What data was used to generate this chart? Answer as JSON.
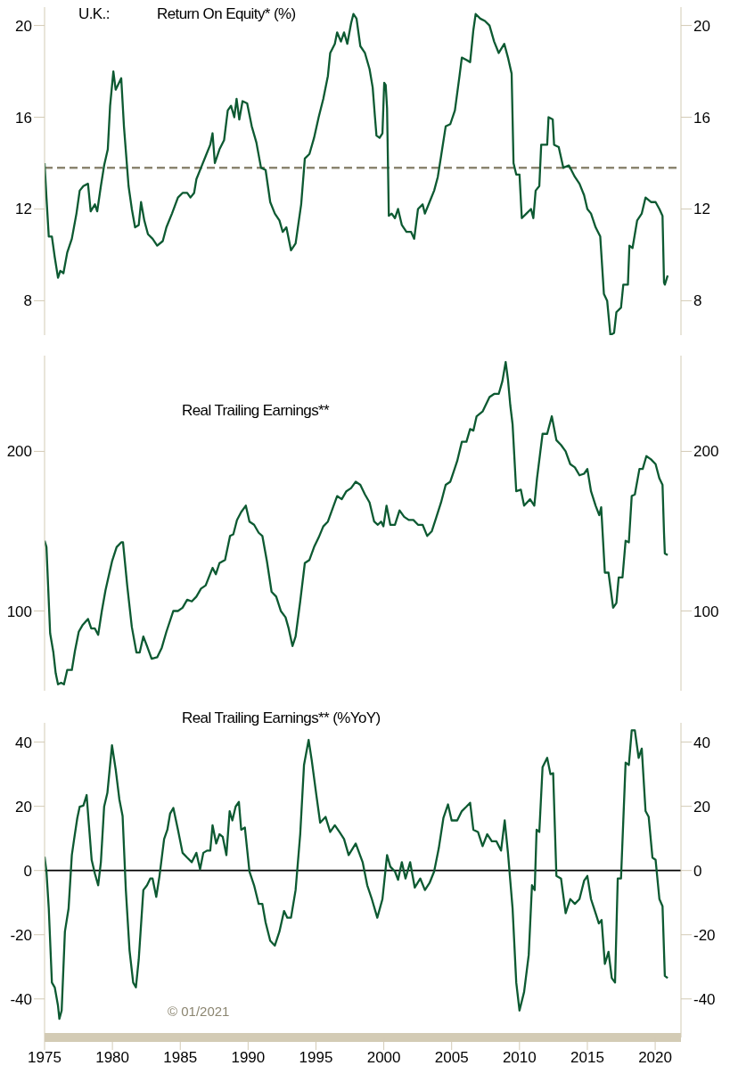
{
  "chart_data": [
    {
      "type": "line",
      "title": "U.K.:",
      "subtitle": "Return On Equity* (%)",
      "x": [
        1975,
        1975.14,
        1975.31,
        1975.54,
        1975.75,
        1975.99,
        1976.16,
        1976.39,
        1976.67,
        1977.01,
        1977.35,
        1977.59,
        1977.86,
        1978.2,
        1978.4,
        1978.71,
        1978.88,
        1979.15,
        1979.39,
        1979.66,
        1979.83,
        1980.07,
        1980.24,
        1980.65,
        1980.85,
        1981.19,
        1981.43,
        1981.67,
        1981.94,
        1982.11,
        1982.35,
        1982.62,
        1982.96,
        1983.3,
        1983.71,
        1983.98,
        1984.39,
        1984.83,
        1985.17,
        1985.51,
        1985.75,
        1986.02,
        1986.19,
        1986.53,
        1986.87,
        1987.21,
        1987.38,
        1987.55,
        1987.89,
        1988.23,
        1988.5,
        1988.74,
        1988.98,
        1989.15,
        1989.35,
        1989.59,
        1989.93,
        1990.27,
        1990.61,
        1990.95,
        1991.29,
        1991.63,
        1991.97,
        1992.31,
        1992.55,
        1992.82,
        1993.16,
        1993.5,
        1993.91,
        1994.18,
        1994.52,
        1994.86,
        1995.2,
        1995.54,
        1995.88,
        1996.05,
        1996.39,
        1996.56,
        1996.84,
        1997.07,
        1997.31,
        1997.59,
        1997.76,
        1997.99,
        1998.27,
        1998.61,
        1998.95,
        1999.18,
        1999.35,
        1999.46,
        1999.69,
        1999.9,
        2000.03,
        2000.14,
        2000.24,
        2000.37,
        2000.58,
        2000.82,
        2001.05,
        2001.33,
        2001.67,
        2002.01,
        2002.24,
        2002.52,
        2002.86,
        2003.03,
        2003.37,
        2003.71,
        2003.98,
        2004.22,
        2004.56,
        2004.9,
        2005.24,
        2005.58,
        2005.75,
        2006.09,
        2006.36,
        2006.6,
        2006.77,
        2007.11,
        2007.45,
        2007.79,
        2008.13,
        2008.47,
        2008.88,
        2009.15,
        2009.42,
        2009.56,
        2009.76,
        2010.0,
        2010.17,
        2010.51,
        2010.85,
        2011.02,
        2011.19,
        2011.46,
        2011.6,
        2012.04,
        2012.14,
        2012.45,
        2012.55,
        2012.89,
        2013.23,
        2013.64,
        2014.08,
        2014.42,
        2014.76,
        2015.0,
        2015.27,
        2015.61,
        2015.95,
        2016.22,
        2016.46,
        2016.7,
        2016.97,
        2017.14,
        2017.48,
        2017.65,
        2017.99,
        2018.1,
        2018.33,
        2018.67,
        2019.01,
        2019.29,
        2019.69,
        2020.03,
        2020.31,
        2020.54,
        2020.65,
        2020.71,
        2020.92
      ],
      "series": [
        {
          "color": "#0d5a32",
          "values": [
            14.0,
            12.5,
            10.8,
            10.8,
            9.9,
            9.0,
            9.3,
            9.2,
            10.1,
            10.7,
            11.8,
            12.8,
            13.0,
            13.1,
            11.9,
            12.2,
            11.9,
            13.0,
            13.9,
            14.6,
            16.5,
            18.0,
            17.2,
            17.7,
            15.6,
            13.0,
            12.0,
            11.2,
            11.3,
            12.3,
            11.5,
            10.9,
            10.7,
            10.4,
            10.6,
            11.2,
            11.8,
            12.5,
            12.7,
            12.7,
            12.5,
            12.7,
            13.3,
            13.8,
            14.3,
            14.8,
            15.3,
            14.0,
            14.6,
            15.0,
            16.3,
            16.5,
            16.0,
            16.8,
            15.9,
            16.7,
            16.6,
            15.6,
            14.9,
            13.8,
            13.7,
            12.3,
            11.8,
            11.5,
            11.0,
            11.2,
            10.2,
            10.5,
            12.2,
            14.2,
            14.4,
            15.1,
            16.0,
            16.8,
            17.8,
            18.8,
            19.2,
            19.7,
            19.3,
            19.7,
            19.2,
            20.1,
            20.5,
            20.3,
            19.1,
            18.8,
            18.1,
            17.3,
            16.0,
            15.2,
            15.1,
            15.3,
            17.5,
            17.4,
            16.4,
            11.7,
            11.8,
            11.6,
            12.0,
            11.3,
            11.0,
            11.0,
            10.7,
            12.0,
            12.2,
            11.8,
            12.3,
            12.8,
            13.4,
            14.3,
            15.6,
            15.7,
            16.3,
            17.8,
            18.6,
            18.5,
            18.4,
            19.8,
            20.5,
            20.3,
            20.2,
            20.0,
            19.3,
            18.8,
            19.2,
            18.6,
            17.9,
            14.0,
            13.5,
            13.5,
            11.6,
            11.8,
            12.0,
            11.6,
            12.8,
            13.0,
            14.8,
            14.8,
            16.0,
            15.9,
            14.8,
            14.7,
            13.8,
            13.9,
            13.4,
            13.1,
            12.6,
            12.0,
            11.8,
            11.2,
            10.8,
            8.3,
            8.0,
            6.5,
            6.6,
            7.5,
            7.7,
            8.7,
            8.7,
            10.4,
            10.3,
            11.5,
            11.8,
            12.5,
            12.3,
            12.3,
            12.0,
            11.7,
            8.8,
            8.7,
            9.1
          ]
        }
      ],
      "xlim": [
        1975,
        2021.9
      ],
      "ylim": [
        6.5,
        20.8
      ],
      "yticks": [
        8,
        12,
        16,
        20
      ],
      "y2lim": [
        6.5,
        20.8
      ],
      "y2ticks": [
        8,
        12,
        16,
        20
      ],
      "tick_labels": "y",
      "ref_lines": [
        {
          "axis": "y",
          "value": 13.8,
          "color": "#8b8570",
          "line_style": "dashed"
        }
      ]
    },
    {
      "type": "line",
      "title": "Real Trailing Earnings**",
      "x": [
        1975,
        1975.14,
        1975.41,
        1975.65,
        1975.82,
        1975.99,
        1976.22,
        1976.43,
        1976.67,
        1977.01,
        1977.24,
        1977.52,
        1977.79,
        1978.2,
        1978.44,
        1978.71,
        1978.95,
        1979.22,
        1979.49,
        1979.73,
        1979.97,
        1980.31,
        1980.65,
        1980.78,
        1981.09,
        1981.43,
        1981.77,
        1982.01,
        1982.28,
        1982.55,
        1982.89,
        1983.3,
        1983.64,
        1983.98,
        1984.49,
        1984.83,
        1985.17,
        1985.51,
        1985.85,
        1986.19,
        1986.53,
        1986.87,
        1987.38,
        1987.62,
        1987.89,
        1988.3,
        1988.67,
        1988.91,
        1989.18,
        1989.49,
        1989.83,
        1990.1,
        1990.44,
        1990.78,
        1991.05,
        1991.39,
        1991.73,
        1992.07,
        1992.41,
        1992.76,
        1992.99,
        1993.27,
        1993.5,
        1993.84,
        1994.18,
        1994.52,
        1994.86,
        1995.2,
        1995.54,
        1995.88,
        1996.22,
        1996.56,
        1996.9,
        1997.24,
        1997.59,
        1997.93,
        1998.27,
        1998.61,
        1998.95,
        1999.29,
        1999.56,
        1999.8,
        1999.97,
        2000.2,
        2000.48,
        2000.82,
        2001.16,
        2001.5,
        2001.84,
        2002.18,
        2002.52,
        2002.86,
        2003.2,
        2003.54,
        2003.88,
        2004.22,
        2004.56,
        2004.9,
        2005.41,
        2005.75,
        2006.09,
        2006.36,
        2006.6,
        2006.84,
        2007.28,
        2007.79,
        2008.13,
        2008.47,
        2008.74,
        2008.98,
        2009.15,
        2009.32,
        2009.49,
        2009.76,
        2010.1,
        2010.34,
        2010.78,
        2011.09,
        2011.29,
        2011.7,
        2012.04,
        2012.38,
        2012.72,
        2013.06,
        2013.4,
        2013.74,
        2014.08,
        2014.42,
        2014.76,
        2015.0,
        2015.27,
        2015.61,
        2015.88,
        2016.02,
        2016.29,
        2016.56,
        2016.9,
        2017.14,
        2017.31,
        2017.59,
        2017.82,
        2018.06,
        2018.27,
        2018.5,
        2018.84,
        2019.08,
        2019.35,
        2019.69,
        2020.03,
        2020.31,
        2020.54,
        2020.65,
        2020.71,
        2020.92
      ],
      "series": [
        {
          "color": "#0d5a32",
          "values": [
            144,
            140,
            86,
            74,
            61,
            54,
            55,
            54,
            63,
            63,
            75,
            87,
            91,
            95,
            89,
            89,
            85,
            100,
            113,
            122,
            131,
            140,
            143,
            143,
            116,
            90,
            74,
            74,
            84,
            78,
            70,
            71,
            77,
            87,
            100,
            100,
            102,
            107,
            106,
            109,
            114,
            116,
            127,
            123,
            130,
            132,
            147,
            148,
            157,
            162,
            166,
            156,
            154,
            149,
            147,
            131,
            112,
            109,
            100,
            96,
            89,
            78,
            84,
            106,
            130,
            132,
            140,
            146,
            153,
            156,
            164,
            172,
            170,
            175,
            177,
            181,
            179,
            173,
            168,
            156,
            154,
            156,
            153,
            166,
            154,
            154,
            163,
            159,
            157,
            157,
            154,
            154,
            147,
            150,
            159,
            168,
            179,
            181,
            194,
            206,
            206,
            214,
            213,
            222,
            225,
            234,
            236,
            236,
            244,
            256,
            245,
            229,
            217,
            175,
            176,
            166,
            170,
            166,
            183,
            211,
            211,
            222,
            207,
            204,
            200,
            192,
            190,
            185,
            186,
            189,
            175,
            166,
            160,
            165,
            124,
            124,
            102,
            105,
            121,
            121,
            144,
            143,
            172,
            173,
            189,
            189,
            197,
            195,
            192,
            183,
            179,
            149,
            136,
            135
          ]
        }
      ],
      "xlim": [
        1975,
        2021.9
      ],
      "ylim": [
        50,
        260
      ],
      "yticks": [
        100,
        200
      ],
      "y2lim": [
        50,
        260
      ],
      "y2ticks": [
        100,
        200
      ],
      "tick_labels": "y"
    },
    {
      "type": "line",
      "title": "Real Trailing Earnings** (%YoY)",
      "annotations": [
        "© 01/2021"
      ],
      "x": [
        1975,
        1975.14,
        1975.31,
        1975.54,
        1975.75,
        1975.99,
        1976.09,
        1976.26,
        1976.5,
        1976.77,
        1977.01,
        1977.18,
        1977.41,
        1977.59,
        1977.86,
        1978.1,
        1978.27,
        1978.47,
        1978.71,
        1978.95,
        1979.15,
        1979.39,
        1979.63,
        1979.83,
        1979.97,
        1980.24,
        1980.51,
        1980.75,
        1980.99,
        1981.26,
        1981.53,
        1981.73,
        1981.94,
        1982.28,
        1982.55,
        1982.79,
        1982.96,
        1983.23,
        1983.47,
        1983.81,
        1984.05,
        1984.25,
        1984.49,
        1984.83,
        1985.17,
        1985.51,
        1985.85,
        1986.19,
        1986.46,
        1986.7,
        1986.97,
        1987.21,
        1987.38,
        1987.65,
        1987.89,
        1988.13,
        1988.4,
        1988.64,
        1988.84,
        1989.08,
        1989.32,
        1989.49,
        1989.76,
        1990.1,
        1990.44,
        1990.78,
        1991.05,
        1991.29,
        1991.63,
        1991.97,
        1992.31,
        1992.65,
        1992.89,
        1993.16,
        1993.5,
        1993.84,
        1994.12,
        1994.46,
        1994.69,
        1995.03,
        1995.31,
        1995.71,
        1996.05,
        1996.39,
        1996.73,
        1997.07,
        1997.41,
        1997.93,
        1998.44,
        1998.78,
        1999.12,
        1999.52,
        1999.9,
        2000.24,
        2000.48,
        2000.82,
        2001.05,
        2001.33,
        2001.6,
        2001.94,
        2002.28,
        2002.69,
        2003.03,
        2003.37,
        2003.71,
        2004.05,
        2004.39,
        2004.73,
        2005.0,
        2005.41,
        2005.75,
        2006.09,
        2006.36,
        2006.6,
        2006.94,
        2007.28,
        2007.62,
        2007.96,
        2008.3,
        2008.64,
        2008.91,
        2009.15,
        2009.49,
        2009.76,
        2010.0,
        2010.34,
        2010.68,
        2010.92,
        2011.12,
        2011.26,
        2011.46,
        2011.7,
        2012.04,
        2012.28,
        2012.48,
        2012.72,
        2013.06,
        2013.4,
        2013.74,
        2014.08,
        2014.42,
        2014.76,
        2015.0,
        2015.27,
        2015.61,
        2015.85,
        2016.05,
        2016.29,
        2016.56,
        2016.8,
        2017.04,
        2017.24,
        2017.48,
        2017.82,
        2018.06,
        2018.27,
        2018.5,
        2018.78,
        2019.01,
        2019.29,
        2019.52,
        2019.8,
        2020.03,
        2020.31,
        2020.54,
        2020.71,
        2020.92
      ],
      "series": [
        {
          "color": "#0d5a32",
          "values": [
            4.3,
            -0.3,
            -11.8,
            -34.9,
            -36.4,
            -42.1,
            -46.2,
            -43.6,
            -19,
            -11.8,
            4.8,
            9.8,
            16.3,
            19.9,
            20.2,
            23.5,
            14.1,
            3.3,
            -1,
            -4.6,
            2.6,
            19.9,
            24.2,
            32.9,
            39,
            31.5,
            22.2,
            17,
            -6.1,
            -24.8,
            -34.9,
            -36.4,
            -27.7,
            -6.1,
            -4.6,
            -2.5,
            -2.5,
            -8.2,
            -1.7,
            9.8,
            12.7,
            17.7,
            19.5,
            12.7,
            5.5,
            4,
            2.6,
            5.5,
            0.4,
            5.5,
            6.2,
            6.2,
            14.1,
            8.4,
            11.3,
            10.5,
            4.8,
            18.5,
            15.6,
            19.9,
            21.4,
            12.7,
            13.4,
            -0.3,
            -4.6,
            -10.4,
            -10.4,
            -16.2,
            -21.9,
            -23.4,
            -19,
            -12.6,
            -14.7,
            -14.7,
            -6.1,
            11.3,
            32.9,
            40.7,
            34.3,
            23.5,
            14.9,
            16.7,
            12,
            14.1,
            12,
            9.8,
            4.8,
            8.4,
            2.6,
            -4.6,
            -8.9,
            -14.7,
            -8.9,
            4.8,
            1.2,
            -0.3,
            -2.9,
            2.6,
            -2.5,
            2.6,
            -5.3,
            -2.5,
            -6.1,
            -3.9,
            -0.3,
            6.9,
            16.3,
            20.6,
            15.6,
            15.6,
            18.5,
            19.9,
            21.1,
            12.7,
            12,
            7.6,
            11.3,
            9.1,
            9.1,
            6.2,
            15.6,
            5.5,
            -11.8,
            -34.9,
            -43.6,
            -37.8,
            -26.3,
            -4.6,
            -6.1,
            12.7,
            12,
            32.2,
            35.1,
            30,
            30.3,
            -1.7,
            -2.5,
            -13.3,
            -8.9,
            -10.4,
            -8.9,
            -3.2,
            -1.7,
            -8.9,
            -13.3,
            -16.5,
            -15.4,
            -29.1,
            -25.3,
            -33.5,
            -34.9,
            -2.5,
            -2.5,
            33.6,
            32.9,
            43.7,
            43.7,
            35.1,
            38,
            18.5,
            16.7,
            4,
            3.3,
            -8.9,
            -11.1,
            -32.8,
            -33.5
          ]
        }
      ],
      "xlim": [
        1975,
        2021.9
      ],
      "xticks": [
        1975,
        1980,
        1985,
        1990,
        1995,
        2000,
        2005,
        2010,
        2015,
        2020
      ],
      "ylim": [
        -52,
        46
      ],
      "yticks": [
        -40,
        -20,
        0,
        20,
        40
      ],
      "y2lim": [
        -52,
        46
      ],
      "y2ticks": [
        -40,
        -20,
        0,
        20,
        40
      ],
      "ref_lines": [
        {
          "axis": "y",
          "value": 0,
          "color": "#000000",
          "line_style": "solid"
        }
      ]
    }
  ]
}
